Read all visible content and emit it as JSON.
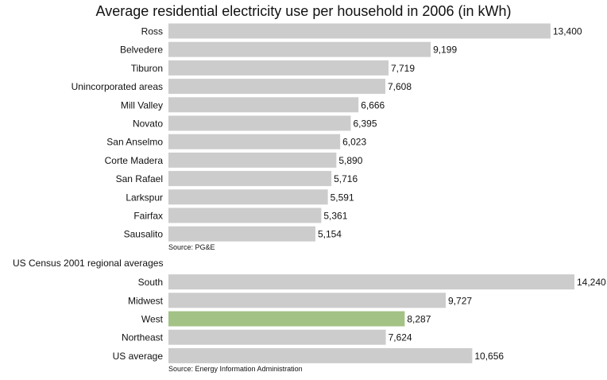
{
  "chart_data": {
    "type": "bar",
    "orientation": "horizontal",
    "title": "Average residential electricity use per household in 2006 (in kWh)",
    "xlim": [
      0,
      14240
    ],
    "grid": false,
    "groups": [
      {
        "heading": "",
        "source": "Source: PG&E",
        "categories": [
          "Ross",
          "Belvedere",
          "Tiburon",
          "Unincorporated areas",
          "Mill Valley",
          "Novato",
          "San Anselmo",
          "Corte Madera",
          "San Rafael",
          "Larkspur",
          "Fairfax",
          "Sausalito"
        ],
        "values": [
          13400,
          9199,
          7719,
          7608,
          6666,
          6395,
          6023,
          5890,
          5716,
          5591,
          5361,
          5154
        ],
        "value_labels": [
          "13,400",
          "9,199",
          "7,719",
          "7,608",
          "6,666",
          "6,395",
          "6,023",
          "5,890",
          "5,716",
          "5,591",
          "5,361",
          "5,154"
        ]
      },
      {
        "heading": "US Census 2001 regional averages",
        "source": "Source: Energy Information Administration",
        "categories": [
          "South",
          "Midwest",
          "West",
          "Northeast",
          "US average"
        ],
        "values": [
          14240,
          9727,
          8287,
          7624,
          10656
        ],
        "value_labels": [
          "14,240",
          "9,727",
          "8,287",
          "7,624",
          "10,656"
        ],
        "highlight": "West"
      }
    ],
    "colors": {
      "bar": "#cccccc",
      "highlight": "#a3c285",
      "text": "#111111"
    }
  }
}
